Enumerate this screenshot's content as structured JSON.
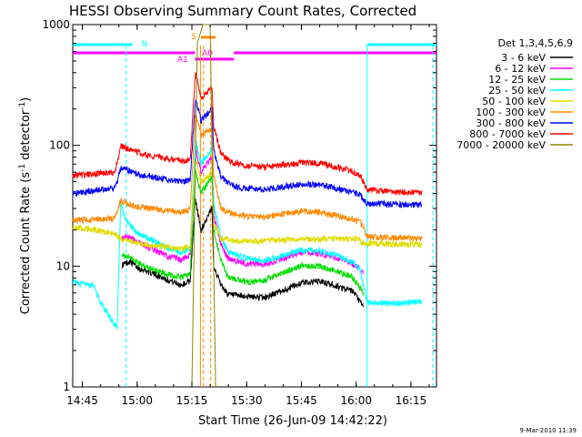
{
  "chart_data": {
    "type": "line",
    "title": "HESSI Observing Summary Count Rates, Corrected",
    "xlabel": "Start Time (26-Jun-09 14:42:22)",
    "ylabel_main": "Corrected Count Rate (s",
    "ylabel_sup1": "-1",
    "ylabel_mid": " detector",
    "ylabel_sup2": "-1",
    "ylabel_end": ")",
    "yscale": "log",
    "xlim": [
      "14:42:22",
      "16:22:00"
    ],
    "ylim": [
      1,
      1000
    ],
    "x_ticks": [
      "14:45",
      "15:00",
      "15:15",
      "15:30",
      "15:45",
      "16:00",
      "16:15"
    ],
    "y_ticks": [
      "1",
      "10",
      "100",
      "1000"
    ],
    "grid": false,
    "legend_position": "right",
    "legend_title": "Det 1,3,4,5,6,9",
    "series": [
      {
        "name": "3 - 6 keV",
        "color": "#000000",
        "points": [
          [
            "14:55:50",
            10.2
          ],
          [
            "14:58:00",
            11
          ],
          [
            "15:00:00",
            9.8
          ],
          [
            "15:04:00",
            8.8
          ],
          [
            "15:08:00",
            7.8
          ],
          [
            "15:12:00",
            7
          ],
          [
            "15:14:30",
            7.5
          ],
          [
            "15:16:00",
            35
          ],
          [
            "15:17:30",
            20
          ],
          [
            "15:20:30",
            30
          ],
          [
            "15:21:00",
            10
          ],
          [
            "15:23:00",
            7
          ],
          [
            "15:25:00",
            5.8
          ],
          [
            "15:30:00",
            5.6
          ],
          [
            "15:35:00",
            5.5
          ],
          [
            "15:40:00",
            6.3
          ],
          [
            "15:45:00",
            7.3
          ],
          [
            "15:50:00",
            7.5
          ],
          [
            "15:55:00",
            6.8
          ],
          [
            "15:59:00",
            6.2
          ],
          [
            "16:02:00",
            4.6
          ]
        ]
      },
      {
        "name": "6 - 12 keV",
        "color": "#ff00ff",
        "points": [
          [
            "14:55:50",
            17
          ],
          [
            "14:58:00",
            17.5
          ],
          [
            "15:00:00",
            16
          ],
          [
            "15:04:00",
            14
          ],
          [
            "15:08:00",
            12.2
          ],
          [
            "15:12:00",
            11.2
          ],
          [
            "15:14:30",
            12.5
          ],
          [
            "15:16:00",
            95
          ],
          [
            "15:17:30",
            60
          ],
          [
            "15:20:30",
            80
          ],
          [
            "15:21:00",
            26
          ],
          [
            "15:23:00",
            15
          ],
          [
            "15:25:00",
            11.5
          ],
          [
            "15:30:00",
            10.5
          ],
          [
            "15:35:00",
            10.4
          ],
          [
            "15:40:00",
            11.5
          ],
          [
            "15:45:00",
            13
          ],
          [
            "15:50:00",
            12.8
          ],
          [
            "15:55:00",
            11.6
          ],
          [
            "15:59:00",
            10.5
          ],
          [
            "16:02:00",
            8.8
          ]
        ]
      },
      {
        "name": "12 - 25 keV",
        "color": "#00dd00",
        "points": [
          [
            "14:55:50",
            12.2
          ],
          [
            "14:58:00",
            11.8
          ],
          [
            "15:00:00",
            10.8
          ],
          [
            "15:04:00",
            9.4
          ],
          [
            "15:08:00",
            8.6
          ],
          [
            "15:12:00",
            8.1
          ],
          [
            "15:14:30",
            8.6
          ],
          [
            "15:16:00",
            60
          ],
          [
            "15:17:30",
            40
          ],
          [
            "15:20:30",
            55
          ],
          [
            "15:21:00",
            20
          ],
          [
            "15:23:00",
            11
          ],
          [
            "15:25:00",
            8
          ],
          [
            "15:30:00",
            7.4
          ],
          [
            "15:35:00",
            7.6
          ],
          [
            "15:40:00",
            8.8
          ],
          [
            "15:45:00",
            10.2
          ],
          [
            "15:50:00",
            10
          ],
          [
            "15:55:00",
            9
          ],
          [
            "15:59:00",
            8.1
          ],
          [
            "16:02:00",
            6
          ]
        ]
      },
      {
        "name": "25 - 50 keV",
        "color": "#00ffff",
        "points": [
          [
            "14:42:22",
            7.5
          ],
          [
            "14:46:00",
            7
          ],
          [
            "14:48:00",
            6.8
          ],
          [
            "14:50:00",
            5
          ],
          [
            "14:53:00",
            3.6
          ],
          [
            "14:54:30",
            3
          ],
          [
            "14:55:30",
            33
          ],
          [
            "14:57:00",
            24
          ],
          [
            "15:00:00",
            19
          ],
          [
            "15:04:00",
            16.5
          ],
          [
            "15:08:00",
            14.2
          ],
          [
            "15:12:00",
            12.8
          ],
          [
            "15:14:30",
            14
          ],
          [
            "15:16:00",
            110
          ],
          [
            "15:17:30",
            70
          ],
          [
            "15:20:30",
            95
          ],
          [
            "15:21:00",
            32
          ],
          [
            "15:23:00",
            17
          ],
          [
            "15:25:00",
            13
          ],
          [
            "15:30:00",
            11.6
          ],
          [
            "15:35:00",
            11.2
          ],
          [
            "15:40:00",
            12.2
          ],
          [
            "15:45:00",
            13.6
          ],
          [
            "15:50:00",
            13.4
          ],
          [
            "15:55:00",
            12.2
          ],
          [
            "15:59:00",
            10.8
          ],
          [
            "16:01:00",
            9.4
          ],
          [
            "16:03:00",
            5
          ],
          [
            "16:10:00",
            4.9
          ],
          [
            "16:18:00",
            5.1
          ]
        ]
      },
      {
        "name": "50 - 100 keV",
        "color": "#dddd00",
        "points": [
          [
            "14:42:22",
            21
          ],
          [
            "14:46:00",
            20.5
          ],
          [
            "14:50:00",
            19.5
          ],
          [
            "14:54:00",
            18.4
          ],
          [
            "14:56:00",
            16.5
          ],
          [
            "15:00:00",
            15.5
          ],
          [
            "15:04:00",
            14.8
          ],
          [
            "15:08:00",
            14.4
          ],
          [
            "15:12:00",
            14
          ],
          [
            "15:14:30",
            14.2
          ],
          [
            "15:16:00",
            80
          ],
          [
            "15:17:30",
            50
          ],
          [
            "15:20:30",
            60
          ],
          [
            "15:21:00",
            22
          ],
          [
            "15:23:00",
            17
          ],
          [
            "15:30:00",
            16
          ],
          [
            "15:40:00",
            16.5
          ],
          [
            "15:50:00",
            16.8
          ],
          [
            "16:00:00",
            17
          ],
          [
            "16:02:00",
            15.5
          ],
          [
            "16:18:00",
            15
          ]
        ]
      },
      {
        "name": "100 - 300 keV",
        "color": "#ff8800",
        "points": [
          [
            "14:42:22",
            24
          ],
          [
            "14:46:00",
            24.2
          ],
          [
            "14:50:00",
            24.6
          ],
          [
            "14:54:00",
            25
          ],
          [
            "14:55:30",
            35
          ],
          [
            "14:57:00",
            33
          ],
          [
            "15:00:00",
            31
          ],
          [
            "15:04:00",
            30
          ],
          [
            "15:08:00",
            29
          ],
          [
            "15:12:00",
            28
          ],
          [
            "15:14:30",
            29
          ],
          [
            "15:16:00",
            180
          ],
          [
            "15:17:30",
            120
          ],
          [
            "15:20:30",
            140
          ],
          [
            "15:21:00",
            55
          ],
          [
            "15:23:00",
            30
          ],
          [
            "15:26:00",
            27
          ],
          [
            "15:30:00",
            26
          ],
          [
            "15:35:00",
            25.5
          ],
          [
            "15:40:00",
            27
          ],
          [
            "15:45:00",
            28.5
          ],
          [
            "15:50:00",
            28
          ],
          [
            "15:55:00",
            26
          ],
          [
            "15:59:00",
            24.5
          ],
          [
            "16:01:00",
            23.5
          ],
          [
            "16:03:00",
            17.5
          ],
          [
            "16:10:00",
            17.2
          ],
          [
            "16:18:00",
            17
          ]
        ]
      },
      {
        "name": "300 - 800 keV",
        "color": "#0000ff",
        "points": [
          [
            "14:42:22",
            40
          ],
          [
            "14:46:00",
            41
          ],
          [
            "14:50:00",
            43
          ],
          [
            "14:54:00",
            44
          ],
          [
            "14:55:30",
            65
          ],
          [
            "14:57:00",
            63
          ],
          [
            "15:00:00",
            58
          ],
          [
            "15:04:00",
            55
          ],
          [
            "15:08:00",
            52
          ],
          [
            "15:12:00",
            50
          ],
          [
            "15:14:30",
            52
          ],
          [
            "15:16:00",
            250
          ],
          [
            "15:17:30",
            160
          ],
          [
            "15:20:30",
            200
          ],
          [
            "15:21:00",
            90
          ],
          [
            "15:23:00",
            55
          ],
          [
            "15:26:00",
            46
          ],
          [
            "15:30:00",
            44
          ],
          [
            "15:35:00",
            43
          ],
          [
            "15:40:00",
            45.5
          ],
          [
            "15:45:00",
            48
          ],
          [
            "15:50:00",
            47
          ],
          [
            "15:55:00",
            44
          ],
          [
            "15:59:00",
            41
          ],
          [
            "16:01:00",
            39
          ],
          [
            "16:03:00",
            33
          ],
          [
            "16:10:00",
            32.5
          ],
          [
            "16:18:00",
            32
          ]
        ]
      },
      {
        "name": "800 - 7000 keV",
        "color": "#ff0000",
        "points": [
          [
            "14:42:22",
            56
          ],
          [
            "14:46:00",
            57
          ],
          [
            "14:50:00",
            59
          ],
          [
            "14:54:00",
            60
          ],
          [
            "14:55:30",
            100
          ],
          [
            "14:57:00",
            95
          ],
          [
            "15:00:00",
            88
          ],
          [
            "15:04:00",
            82
          ],
          [
            "15:08:00",
            78
          ],
          [
            "15:12:00",
            74
          ],
          [
            "15:14:30",
            76
          ],
          [
            "15:16:00",
            400
          ],
          [
            "15:17:30",
            250
          ],
          [
            "15:20:30",
            300
          ],
          [
            "15:21:00",
            140
          ],
          [
            "15:23:00",
            85
          ],
          [
            "15:26:00",
            72
          ],
          [
            "15:30:00",
            68
          ],
          [
            "15:35:00",
            66
          ],
          [
            "15:40:00",
            69
          ],
          [
            "15:45:00",
            72
          ],
          [
            "15:50:00",
            71
          ],
          [
            "15:55:00",
            66
          ],
          [
            "15:59:00",
            61
          ],
          [
            "16:01:00",
            57
          ],
          [
            "16:03:00",
            43
          ],
          [
            "16:10:00",
            41
          ],
          [
            "16:18:00",
            41
          ]
        ]
      },
      {
        "name": "7000 - 20000 keV",
        "color": "#888800",
        "points": [
          [
            "15:15:00",
            1.0
          ],
          [
            "15:16:30",
            700
          ],
          [
            "15:18:00",
            1000
          ],
          [
            "15:20:00",
            1000
          ],
          [
            "15:21:30",
            1.0
          ]
        ]
      }
    ],
    "flag_markers": [
      {
        "label": "N",
        "color": "#00ffff"
      },
      {
        "label": "S",
        "color": "#ff8800"
      },
      {
        "label": "A0",
        "color": "#ff00ff"
      },
      {
        "label": "A1",
        "color": "#ff00ff"
      }
    ],
    "timestamp": "9-Mar-2010 11:39"
  }
}
